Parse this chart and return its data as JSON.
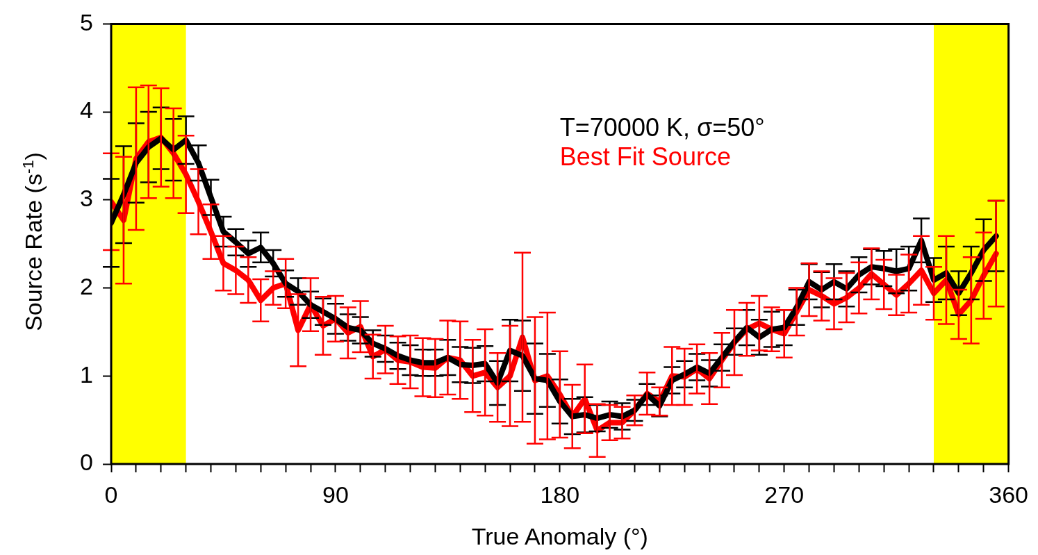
{
  "chart_data": {
    "type": "line",
    "xlabel": "True Anomaly (°)",
    "ylabel": "Source Rate (s$^{-1}$)",
    "x": [
      0,
      5,
      10,
      15,
      20,
      25,
      30,
      35,
      40,
      45,
      50,
      55,
      60,
      65,
      70,
      75,
      80,
      85,
      90,
      95,
      100,
      105,
      110,
      115,
      120,
      125,
      130,
      135,
      140,
      145,
      150,
      155,
      160,
      165,
      170,
      175,
      180,
      185,
      190,
      195,
      200,
      205,
      210,
      215,
      220,
      225,
      230,
      235,
      240,
      245,
      250,
      255,
      260,
      265,
      270,
      275,
      280,
      285,
      290,
      295,
      300,
      305,
      310,
      315,
      320,
      325,
      330,
      335,
      340,
      345,
      350,
      355
    ],
    "series": [
      {
        "name": "T=70000 K, σ=50°",
        "color": "#000000",
        "values": [
          2.74,
          3.06,
          3.42,
          3.6,
          3.7,
          3.57,
          3.68,
          3.42,
          3.03,
          2.64,
          2.52,
          2.39,
          2.46,
          2.28,
          2.05,
          1.96,
          1.81,
          1.73,
          1.65,
          1.55,
          1.52,
          1.37,
          1.31,
          1.23,
          1.18,
          1.15,
          1.15,
          1.21,
          1.13,
          1.12,
          1.14,
          0.92,
          1.29,
          1.23,
          0.97,
          0.95,
          0.71,
          0.54,
          0.56,
          0.52,
          0.56,
          0.54,
          0.61,
          0.79,
          0.66,
          0.95,
          1.02,
          1.1,
          1.03,
          1.21,
          1.39,
          1.55,
          1.44,
          1.53,
          1.55,
          1.78,
          2.07,
          1.98,
          2.07,
          1.99,
          2.15,
          2.24,
          2.22,
          2.19,
          2.22,
          2.54,
          2.09,
          2.17,
          1.94,
          2.17,
          2.43,
          2.59
        ],
        "errors": [
          0.5,
          0.55,
          0.45,
          0.4,
          0.35,
          0.35,
          0.27,
          0.2,
          0.2,
          0.17,
          0.15,
          0.15,
          0.17,
          0.15,
          0.15,
          0.15,
          0.15,
          0.15,
          0.17,
          0.15,
          0.15,
          0.15,
          0.15,
          0.15,
          0.17,
          0.15,
          0.15,
          0.2,
          0.2,
          0.2,
          0.2,
          0.25,
          0.35,
          0.4,
          0.4,
          0.3,
          0.25,
          0.2,
          0.2,
          0.15,
          0.15,
          0.15,
          0.12,
          0.12,
          0.12,
          0.15,
          0.15,
          0.15,
          0.15,
          0.15,
          0.15,
          0.2,
          0.2,
          0.2,
          0.2,
          0.2,
          0.2,
          0.2,
          0.2,
          0.2,
          0.2,
          0.2,
          0.2,
          0.25,
          0.25,
          0.25,
          0.25,
          0.3,
          0.25,
          0.3,
          0.35,
          0.4
        ]
      },
      {
        "name": "Best Fit Source",
        "color": "#ff0000",
        "values": [
          2.98,
          2.77,
          3.47,
          3.66,
          3.71,
          3.53,
          3.29,
          2.98,
          2.64,
          2.28,
          2.2,
          2.09,
          1.86,
          2.0,
          2.05,
          1.52,
          1.81,
          1.57,
          1.65,
          1.49,
          1.56,
          1.22,
          1.3,
          1.18,
          1.16,
          1.1,
          1.09,
          1.21,
          1.18,
          1.0,
          1.04,
          0.87,
          1.0,
          1.44,
          0.95,
          1.0,
          0.79,
          0.54,
          0.74,
          0.38,
          0.47,
          0.47,
          0.61,
          0.8,
          0.71,
          1.0,
          0.99,
          1.08,
          0.97,
          1.18,
          1.38,
          1.53,
          1.6,
          1.53,
          1.48,
          1.73,
          1.98,
          1.91,
          1.82,
          1.89,
          2.0,
          2.16,
          2.04,
          1.92,
          2.05,
          2.2,
          1.94,
          2.09,
          1.7,
          1.86,
          2.14,
          2.39
        ],
        "errors": [
          0.55,
          0.72,
          0.81,
          0.64,
          0.56,
          0.51,
          0.44,
          0.37,
          0.31,
          0.31,
          0.27,
          0.26,
          0.24,
          0.19,
          0.28,
          0.41,
          0.3,
          0.33,
          0.26,
          0.29,
          0.29,
          0.25,
          0.27,
          0.27,
          0.3,
          0.33,
          0.33,
          0.42,
          0.44,
          0.41,
          0.49,
          0.39,
          0.57,
          0.96,
          0.72,
          0.72,
          0.49,
          0.36,
          0.39,
          0.3,
          0.2,
          0.18,
          0.17,
          0.24,
          0.16,
          0.33,
          0.32,
          0.28,
          0.29,
          0.31,
          0.37,
          0.3,
          0.31,
          0.25,
          0.27,
          0.27,
          0.3,
          0.28,
          0.29,
          0.28,
          0.29,
          0.29,
          0.28,
          0.23,
          0.33,
          0.39,
          0.3,
          0.5,
          0.28,
          0.49,
          0.49,
          0.6
        ]
      }
    ],
    "xlim": [
      0,
      360
    ],
    "xticks": [
      0,
      {
        "value": 10,
        "label": null
      },
      {
        "value": 20,
        "label": null
      },
      {
        "value": 30,
        "label": null
      },
      {
        "value": 40,
        "label": null
      },
      {
        "value": 50,
        "label": null
      },
      {
        "value": 60,
        "label": null
      },
      {
        "value": 70,
        "label": null
      },
      {
        "value": 80,
        "label": null
      },
      90,
      {
        "value": 100,
        "label": null
      },
      {
        "value": 110,
        "label": null
      },
      {
        "value": 120,
        "label": null
      },
      {
        "value": 130,
        "label": null
      },
      {
        "value": 140,
        "label": null
      },
      {
        "value": 150,
        "label": null
      },
      {
        "value": 160,
        "label": null
      },
      {
        "value": 170,
        "label": null
      },
      180,
      {
        "value": 190,
        "label": null
      },
      {
        "value": 200,
        "label": null
      },
      {
        "value": 210,
        "label": null
      },
      {
        "value": 220,
        "label": null
      },
      {
        "value": 230,
        "label": null
      },
      {
        "value": 240,
        "label": null
      },
      {
        "value": 250,
        "label": null
      },
      {
        "value": 260,
        "label": null
      },
      270,
      {
        "value": 280,
        "label": null
      },
      {
        "value": 290,
        "label": null
      },
      {
        "value": 300,
        "label": null
      },
      {
        "value": 310,
        "label": null
      },
      {
        "value": 320,
        "label": null
      },
      {
        "value": 330,
        "label": null
      },
      {
        "value": 340,
        "label": null
      },
      {
        "value": 350,
        "label": null
      },
      360
    ],
    "ylim": [
      0,
      5
    ],
    "yticks": [
      0,
      1,
      2,
      3,
      4,
      5
    ],
    "bands": [
      {
        "axis": "x",
        "from": 0,
        "to": 30,
        "color": "#ffff00"
      },
      {
        "axis": "x",
        "from": 330,
        "to": 360,
        "color": "#ffff00"
      }
    ],
    "legend": "top right",
    "marker": "none",
    "line_style": "solid",
    "grid": false
  }
}
